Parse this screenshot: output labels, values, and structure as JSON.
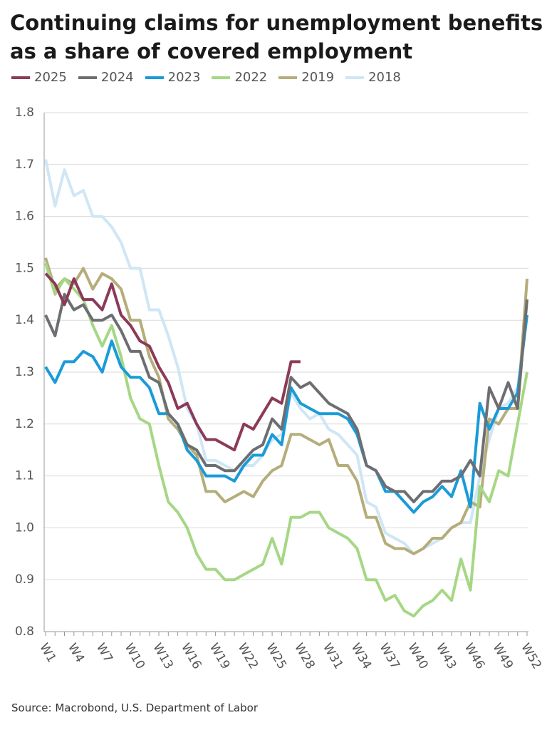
{
  "chart_data": {
    "type": "line",
    "title": "Continuing claims for unemployment benefits as a share of covered employment",
    "source": "Source: Macrobond, U.S. Department of Labor",
    "categories": [
      "W1",
      null,
      null,
      "W4",
      null,
      null,
      "W7",
      null,
      null,
      "W10",
      null,
      null,
      "W13",
      null,
      null,
      "W16",
      null,
      null,
      "W19",
      null,
      null,
      "W22",
      null,
      null,
      "W25",
      null,
      null,
      "W28",
      null,
      null,
      "W31",
      null,
      null,
      "W34",
      null,
      null,
      "W37",
      null,
      null,
      "W40",
      null,
      null,
      "W43",
      null,
      null,
      "W46",
      null,
      null,
      "W49",
      null,
      null,
      "W52"
    ],
    "ylim": [
      0.8,
      1.8
    ],
    "yticks": [
      0.8,
      0.9,
      {
        "value": 1,
        "label": "1.0"
      },
      1.1,
      1.2,
      1.3,
      1.4,
      1.5,
      1.6,
      1.7,
      1.8
    ],
    "grid": true,
    "legend": "top",
    "series": [
      {
        "name": "2025",
        "color": "#8b3a58",
        "values": [
          1.49,
          1.47,
          1.43,
          1.48,
          1.44,
          1.44,
          1.42,
          1.47,
          1.41,
          1.39,
          1.36,
          1.35,
          1.31,
          1.28,
          1.23,
          1.24,
          1.2,
          1.17,
          1.17,
          1.16,
          1.15,
          1.2,
          1.19,
          1.22,
          1.25,
          1.24,
          1.32,
          1.32,
          null,
          null,
          null,
          null,
          null,
          null,
          null,
          null,
          null,
          null,
          null,
          null,
          null,
          null,
          null,
          null,
          null,
          null,
          null,
          null,
          null,
          null,
          null,
          null
        ]
      },
      {
        "name": "2024",
        "color": "#6d6e71",
        "values": [
          1.41,
          1.37,
          1.45,
          1.42,
          1.43,
          1.4,
          1.4,
          1.41,
          1.38,
          1.34,
          1.34,
          1.29,
          1.28,
          1.22,
          1.2,
          1.16,
          1.15,
          1.12,
          1.12,
          1.11,
          1.11,
          1.13,
          1.15,
          1.16,
          1.21,
          1.19,
          1.29,
          1.27,
          1.28,
          1.26,
          1.24,
          1.23,
          1.22,
          1.19,
          1.12,
          1.11,
          1.08,
          1.07,
          1.07,
          1.05,
          1.07,
          1.07,
          1.09,
          1.09,
          1.1,
          1.13,
          1.1,
          1.27,
          1.23,
          1.28,
          1.23,
          1.44
        ]
      },
      {
        "name": "2023",
        "color": "#1a9bd7",
        "values": [
          1.31,
          1.28,
          1.32,
          1.32,
          1.34,
          1.33,
          1.3,
          1.36,
          1.31,
          1.29,
          1.29,
          1.27,
          1.22,
          1.22,
          1.2,
          1.15,
          1.13,
          1.1,
          1.1,
          1.1,
          1.09,
          1.12,
          1.14,
          1.14,
          1.18,
          1.16,
          1.27,
          1.24,
          1.23,
          1.22,
          1.22,
          1.22,
          1.21,
          1.18,
          1.12,
          1.11,
          1.07,
          1.07,
          1.05,
          1.03,
          1.05,
          1.06,
          1.08,
          1.06,
          1.11,
          1.04,
          1.24,
          1.19,
          1.23,
          1.23,
          1.26,
          1.41
        ]
      },
      {
        "name": "2022",
        "color": "#a6d785",
        "values": [
          1.51,
          1.45,
          1.48,
          1.46,
          1.44,
          1.39,
          1.35,
          1.39,
          1.33,
          1.25,
          1.21,
          1.2,
          1.12,
          1.05,
          1.03,
          1.0,
          0.95,
          0.92,
          0.92,
          0.9,
          0.9,
          0.91,
          0.92,
          0.93,
          0.98,
          0.93,
          1.02,
          1.02,
          1.03,
          1.03,
          1.0,
          0.99,
          0.98,
          0.96,
          0.9,
          0.9,
          0.86,
          0.87,
          0.84,
          0.83,
          0.85,
          0.86,
          0.88,
          0.86,
          0.94,
          0.88,
          1.08,
          1.05,
          1.11,
          1.1,
          1.2,
          1.3
        ]
      },
      {
        "name": "2019",
        "color": "#b5ad7a",
        "values": [
          1.52,
          1.46,
          1.48,
          1.47,
          1.5,
          1.46,
          1.49,
          1.48,
          1.46,
          1.4,
          1.4,
          1.33,
          1.29,
          1.21,
          1.19,
          1.16,
          1.14,
          1.07,
          1.07,
          1.05,
          1.06,
          1.07,
          1.06,
          1.09,
          1.11,
          1.12,
          1.18,
          1.18,
          1.17,
          1.16,
          1.17,
          1.12,
          1.12,
          1.09,
          1.02,
          1.02,
          0.97,
          0.96,
          0.96,
          0.95,
          0.96,
          0.98,
          0.98,
          1.0,
          1.01,
          1.05,
          1.04,
          1.21,
          1.2,
          1.23,
          1.23,
          1.48
        ]
      },
      {
        "name": "2018",
        "color": "#cfe6f5",
        "values": [
          1.71,
          1.62,
          1.69,
          1.64,
          1.65,
          1.6,
          1.6,
          1.58,
          1.55,
          1.5,
          1.5,
          1.42,
          1.42,
          1.37,
          1.31,
          1.23,
          1.2,
          1.13,
          1.13,
          1.12,
          1.11,
          1.12,
          1.12,
          1.14,
          1.17,
          1.18,
          1.26,
          1.23,
          1.21,
          1.22,
          1.19,
          1.18,
          1.16,
          1.14,
          1.05,
          1.04,
          0.99,
          0.98,
          0.97,
          0.95,
          0.96,
          0.97,
          0.98,
          1.0,
          1.01,
          1.01,
          1.1,
          1.17,
          1.23,
          1.24,
          1.27,
          1.41
        ]
      }
    ]
  }
}
